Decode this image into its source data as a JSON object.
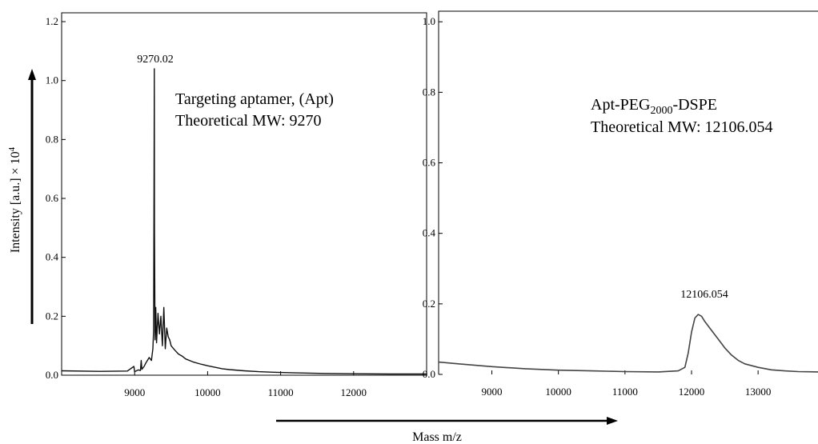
{
  "figure": {
    "y_axis_label": "Intensity [a.u.] × 10",
    "y_axis_label_sup": "4",
    "x_axis_label": "Mass m/z"
  },
  "chart_data": [
    {
      "type": "line",
      "annotation_line1": "Targeting aptamer, (Apt)",
      "annotation_line2": "Theoretical MW: 9270",
      "peak_label": "9270.02",
      "xlim": [
        8000,
        13000
      ],
      "ylim": [
        0,
        1.23
      ],
      "x_ticks": [
        9000,
        10000,
        11000,
        12000
      ],
      "y_ticks": [
        0.0,
        0.2,
        0.4,
        0.6,
        0.8,
        1.0,
        1.2
      ],
      "y_tick_labels": [
        "0.0",
        "0.2",
        "0.4",
        "0.6",
        "0.8",
        "1.0",
        "1.2"
      ],
      "grid": false,
      "line_color": "#111111",
      "series": [
        {
          "x": [
            8000,
            8500,
            8900,
            8990,
            9000,
            9050,
            9080,
            9090,
            9100,
            9130,
            9150,
            9200,
            9230,
            9250,
            9260,
            9268,
            9270,
            9272,
            9280,
            9290,
            9300,
            9320,
            9340,
            9360,
            9380,
            9400,
            9420,
            9440,
            9460,
            9480,
            9500,
            9550,
            9600,
            9650,
            9700,
            9800,
            9900,
            10000,
            10100,
            10200,
            10300,
            10500,
            10700,
            10900,
            11200,
            11600,
            12000,
            12500,
            13000
          ],
          "y": [
            0.015,
            0.013,
            0.014,
            0.03,
            0.012,
            0.018,
            0.016,
            0.05,
            0.02,
            0.03,
            0.04,
            0.06,
            0.05,
            0.09,
            0.15,
            0.8,
            1.04,
            0.5,
            0.12,
            0.23,
            0.11,
            0.21,
            0.14,
            0.2,
            0.1,
            0.23,
            0.09,
            0.16,
            0.13,
            0.12,
            0.1,
            0.085,
            0.072,
            0.065,
            0.055,
            0.045,
            0.038,
            0.032,
            0.027,
            0.022,
            0.019,
            0.015,
            0.012,
            0.01,
            0.008,
            0.006,
            0.005,
            0.004,
            0.004
          ]
        }
      ]
    },
    {
      "type": "line",
      "annotation_line1": "Apt-PEG",
      "annotation_sub": "2000",
      "annotation_line1_suffix": "-DSPE",
      "annotation_line2": "Theoretical MW: 12106.054",
      "peak_label": "12106.054",
      "xlim": [
        8200,
        13900
      ],
      "ylim": [
        0,
        1.03
      ],
      "x_ticks": [
        9000,
        10000,
        11000,
        12000,
        13000
      ],
      "y_ticks": [
        0.0,
        0.2,
        0.4,
        0.6,
        0.8,
        1.0
      ],
      "y_tick_labels": [
        "0.0",
        "0.2",
        "0.4",
        "0.6",
        "0.8",
        "1.0"
      ],
      "grid": false,
      "line_color": "#444444",
      "series": [
        {
          "x": [
            8200,
            8500,
            9000,
            9500,
            10000,
            10500,
            11000,
            11500,
            11800,
            11900,
            11950,
            12000,
            12050,
            12100,
            12150,
            12200,
            12300,
            12400,
            12500,
            12600,
            12700,
            12800,
            13000,
            13200,
            13400,
            13600,
            13900
          ],
          "y": [
            0.035,
            0.03,
            0.022,
            0.016,
            0.012,
            0.01,
            0.008,
            0.007,
            0.01,
            0.02,
            0.06,
            0.12,
            0.16,
            0.17,
            0.165,
            0.15,
            0.125,
            0.1,
            0.075,
            0.055,
            0.04,
            0.03,
            0.02,
            0.013,
            0.01,
            0.008,
            0.007
          ]
        }
      ]
    }
  ]
}
